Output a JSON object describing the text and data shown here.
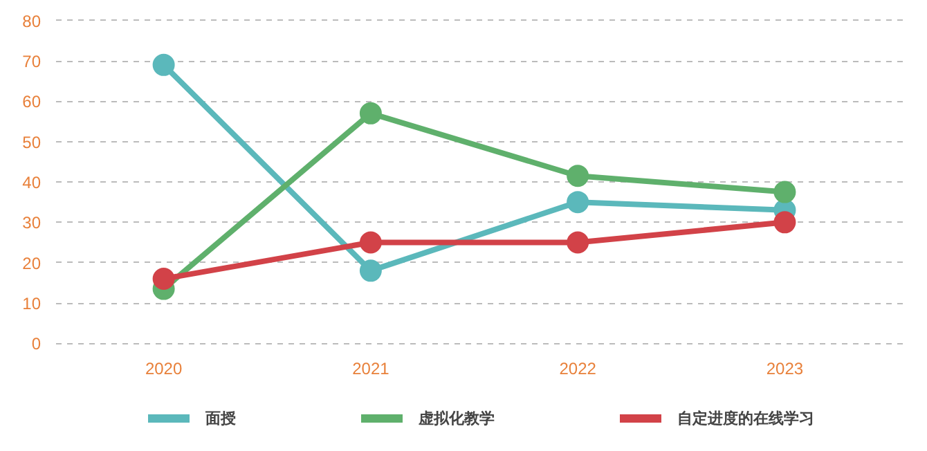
{
  "chart_data": {
    "type": "line",
    "categories": [
      "2020",
      "2021",
      "2022",
      "2023"
    ],
    "series": [
      {
        "name": "面授",
        "color": "#5bb8bb",
        "values": [
          69,
          18,
          35,
          33
        ]
      },
      {
        "name": "虚拟化教学",
        "color": "#5fb06c",
        "values": [
          13.5,
          57,
          41.5,
          37.5
        ]
      },
      {
        "name": "自定进度的在线学习",
        "color": "#d24248",
        "values": [
          16,
          25,
          25,
          30
        ]
      }
    ],
    "ylim": [
      0,
      80
    ],
    "yticks": [
      0,
      10,
      20,
      30,
      40,
      50,
      60,
      70,
      80
    ],
    "grid": "y",
    "legend": "bottom",
    "marker": "circle",
    "line_style": "solid"
  }
}
